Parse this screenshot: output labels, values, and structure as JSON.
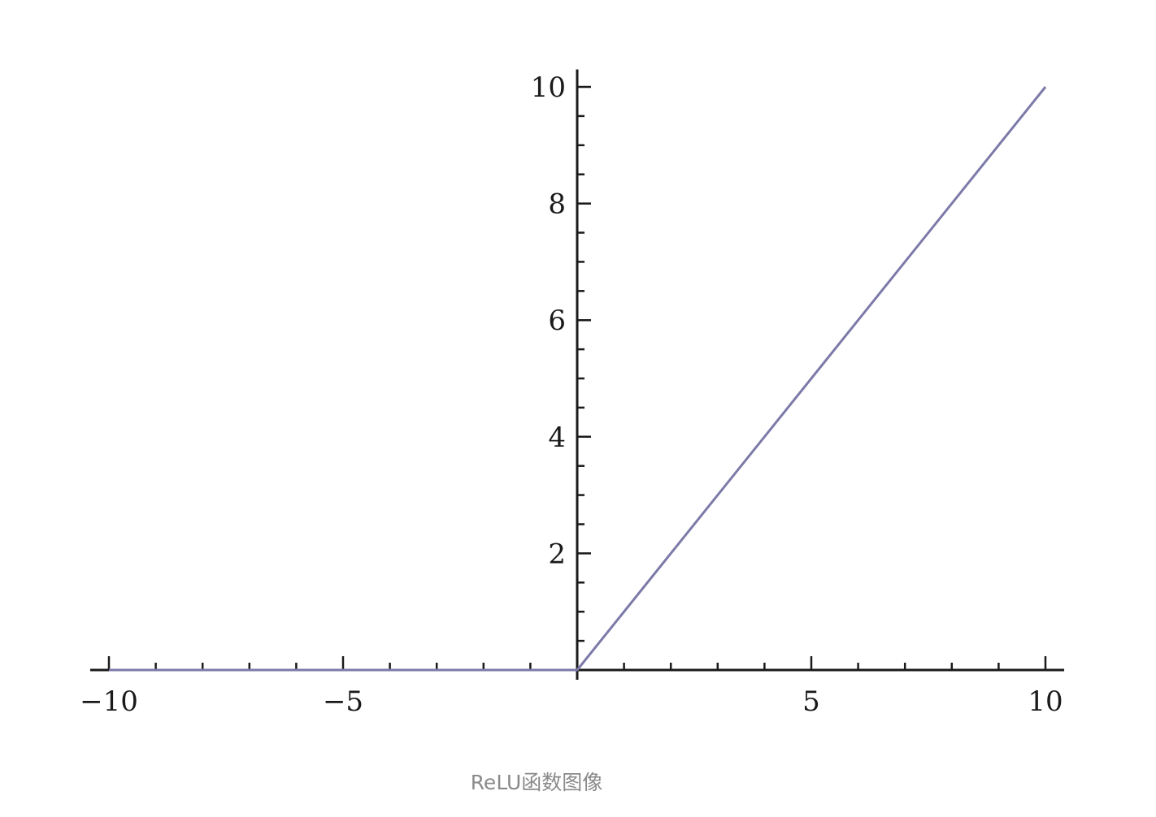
{
  "caption": "ReLU函数图像",
  "chart_data": {
    "type": "line",
    "title": "",
    "xlabel": "",
    "ylabel": "",
    "xlim": [
      -10.4,
      10.4
    ],
    "ylim": [
      0,
      10.3
    ],
    "x_ticks": [
      -10,
      -5,
      5,
      10
    ],
    "x_tick_labels": [
      "−10",
      "−5",
      "5",
      "10"
    ],
    "y_ticks": [
      2,
      4,
      6,
      8,
      10
    ],
    "y_tick_labels": [
      "2",
      "4",
      "6",
      "8",
      "10"
    ],
    "x_minor_step": 1,
    "y_minor_step": 0.5,
    "grid": false,
    "series": [
      {
        "x": [
          -10,
          0,
          10
        ],
        "y": [
          0,
          0,
          10
        ],
        "color": "#7c7aa8"
      }
    ]
  }
}
